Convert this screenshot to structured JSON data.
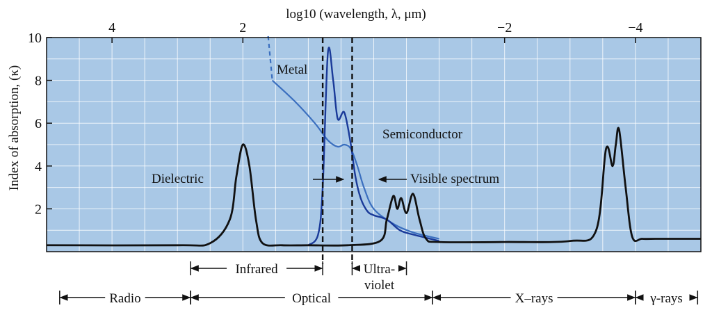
{
  "chart_data": {
    "type": "line",
    "title": "log10 (wavelength, λ, μm)",
    "ylabel": "Index of absorption, (κ)",
    "xlabel": "",
    "x_axis": "log10 wavelength (μm), decreasing to the right",
    "xlim": [
      5,
      -5
    ],
    "ylim": [
      0,
      10
    ],
    "grid": true,
    "background": "#a9c8e6",
    "x_ticks": [
      {
        "value": 4,
        "label": "4"
      },
      {
        "value": 2,
        "label": "2"
      },
      {
        "value": -2,
        "label": "−2"
      },
      {
        "value": -4,
        "label": "−4"
      }
    ],
    "y_ticks": [
      {
        "value": 2,
        "label": "2"
      },
      {
        "value": 4,
        "label": "4"
      },
      {
        "value": 6,
        "label": "6"
      },
      {
        "value": 8,
        "label": "8"
      },
      {
        "value": 10,
        "label": "10"
      }
    ],
    "series": [
      {
        "name": "Dielectric",
        "color": "#111111",
        "x": [
          5,
          3,
          2.5,
          2.2,
          2.1,
          2.0,
          1.9,
          1.8,
          1.7,
          1.4,
          1.0,
          0.4,
          -0.1,
          -0.2,
          -0.3,
          -0.36,
          -0.42,
          -0.5,
          -0.6,
          -0.7,
          -0.8,
          -1.0,
          -2.0,
          -3.0,
          -3.4,
          -3.55,
          -3.65,
          -3.7,
          -3.75,
          -3.85,
          -3.95,
          -4.1,
          -4.3,
          -5
        ],
        "y": [
          0.3,
          0.3,
          0.4,
          1.5,
          3.5,
          5.0,
          4.0,
          1.5,
          0.4,
          0.3,
          0.3,
          0.3,
          0.5,
          1.5,
          2.6,
          2.0,
          2.5,
          1.8,
          2.7,
          1.5,
          0.6,
          0.45,
          0.45,
          0.5,
          1.0,
          4.8,
          4.0,
          5.0,
          5.7,
          3.0,
          0.7,
          0.6,
          0.6,
          0.6
        ]
      },
      {
        "name": "Metal",
        "color": "#3b6fbf",
        "x": [
          1.55,
          1.2,
          0.9,
          0.7,
          0.55,
          0.45,
          0.35,
          0.25,
          0.15,
          0.0,
          -0.3,
          -0.6,
          -1.0
        ],
        "y": [
          8.0,
          7.0,
          6.0,
          5.2,
          4.9,
          5.0,
          4.8,
          4.0,
          3.0,
          2.0,
          1.3,
          0.9,
          0.6
        ]
      },
      {
        "name": "Semiconductor",
        "color": "#1a3a99",
        "x": [
          1.0,
          0.85,
          0.78,
          0.7,
          0.62,
          0.55,
          0.45,
          0.35,
          0.28,
          0.2,
          0.1,
          0.0,
          -0.2,
          -0.4,
          -0.6,
          -1.0
        ],
        "y": [
          0.3,
          0.8,
          3.0,
          9.3,
          8.0,
          6.2,
          6.5,
          5.0,
          3.5,
          2.5,
          1.9,
          1.7,
          1.5,
          1.0,
          0.8,
          0.5
        ]
      }
    ],
    "reference_lines": [
      {
        "x": 0.78,
        "style": "dashed"
      },
      {
        "x": 0.33,
        "style": "dashed"
      }
    ],
    "annotations": [
      {
        "text": "Metal"
      },
      {
        "text": "Semiconductor"
      },
      {
        "text": "Dielectric"
      },
      {
        "text": "Visible spectrum"
      }
    ],
    "bands": [
      {
        "label": "Infrared",
        "from": 2.8,
        "to": 0.78
      },
      {
        "label": "Ultra-",
        "label2": "violet",
        "from": 0.33,
        "to": -0.5
      }
    ],
    "regions": [
      {
        "label": "Radio",
        "from": 4.8,
        "to": 2.8
      },
      {
        "label": "Optical",
        "from": 2.8,
        "to": -0.9
      },
      {
        "label": "X–rays",
        "from": -0.9,
        "to": -4.0
      },
      {
        "label": "γ-rays",
        "from": -4.0,
        "to": -4.95
      }
    ]
  }
}
